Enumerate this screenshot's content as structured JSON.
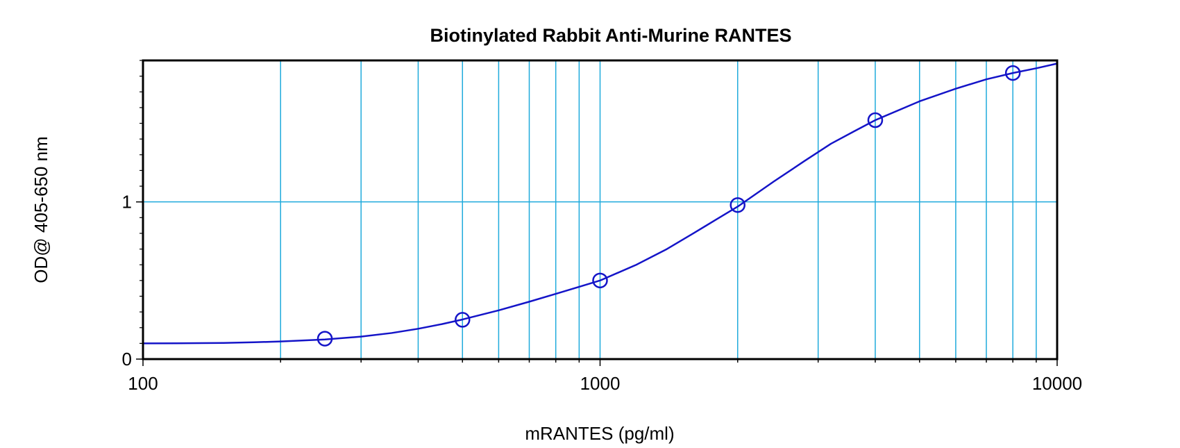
{
  "chart_data": {
    "type": "scatter",
    "title": "Biotinylated Rabbit Anti-Murine RANTES",
    "xlabel": "mRANTES (pg/ml)",
    "ylabel": "OD@ 405-650 nm",
    "x_scale": "log",
    "xlim": [
      100,
      10000
    ],
    "ylim": [
      0,
      1.9
    ],
    "x_ticks": [
      {
        "value": 100,
        "label": "100"
      },
      {
        "value": 1000,
        "label": "1000"
      },
      {
        "value": 10000,
        "label": "10000"
      }
    ],
    "y_ticks": [
      {
        "value": 0,
        "label": "0"
      },
      {
        "value": 1,
        "label": "1"
      }
    ],
    "grid": true,
    "colors": {
      "grid": "#1eaadc",
      "series": "#1414c8",
      "frame": "#000000"
    },
    "series": [
      {
        "type": "scatter",
        "marker": "circle-open",
        "x": [
          250,
          500,
          1000,
          2000,
          4000,
          8000
        ],
        "y": [
          0.13,
          0.25,
          0.5,
          0.98,
          1.52,
          1.82
        ]
      },
      {
        "type": "line",
        "fit": "sigmoid",
        "x": [
          100,
          125,
          150,
          175,
          200,
          250,
          300,
          350,
          400,
          450,
          500,
          600,
          700,
          800,
          900,
          1000,
          1200,
          1400,
          1600,
          1800,
          2000,
          2400,
          2800,
          3200,
          3600,
          4000,
          5000,
          6000,
          7000,
          8000,
          9000,
          10000
        ],
        "y": [
          0.1,
          0.101,
          0.103,
          0.107,
          0.112,
          0.125,
          0.143,
          0.166,
          0.193,
          0.222,
          0.252,
          0.31,
          0.365,
          0.415,
          0.46,
          0.5,
          0.6,
          0.7,
          0.8,
          0.89,
          0.97,
          1.13,
          1.26,
          1.37,
          1.45,
          1.52,
          1.64,
          1.72,
          1.78,
          1.82,
          1.85,
          1.88
        ]
      }
    ]
  }
}
